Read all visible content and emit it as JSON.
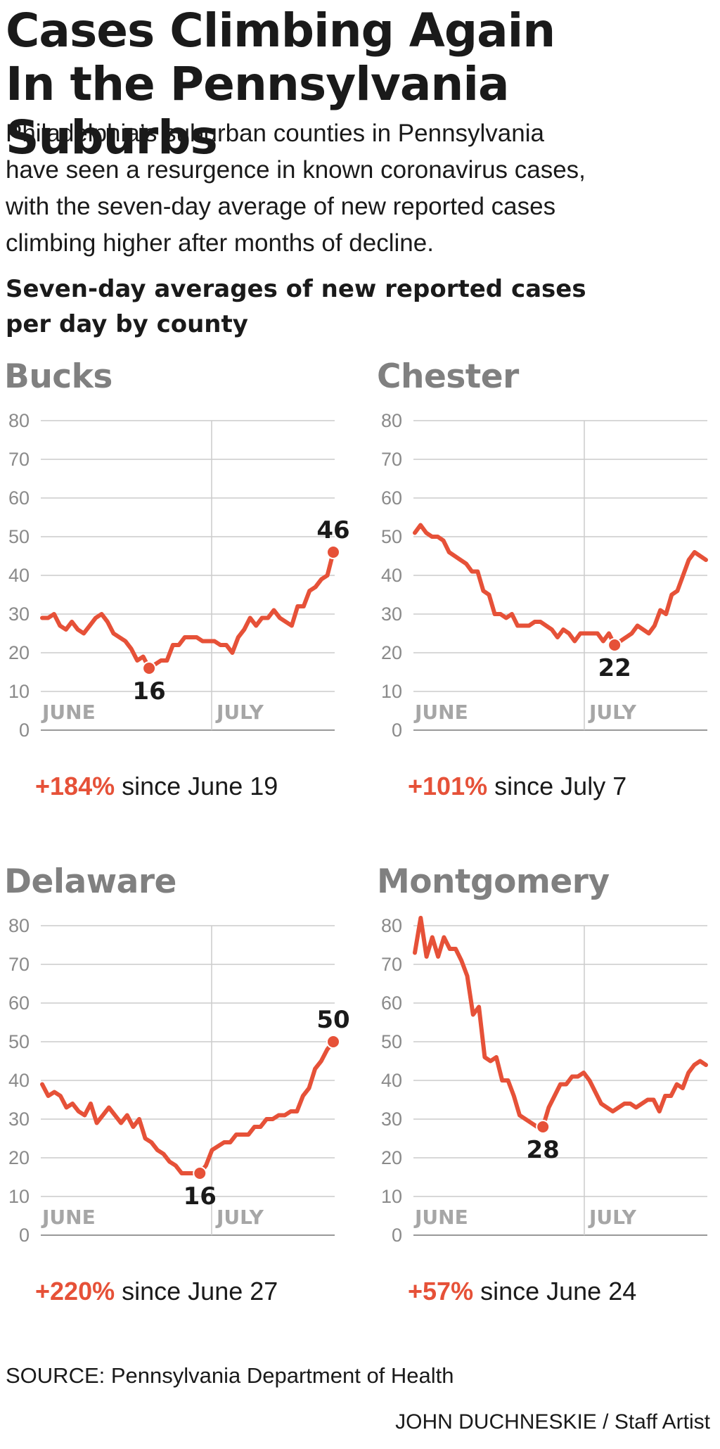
{
  "title": [
    "Cases Climbing Again",
    "In the Pennsylvania Suburbs"
  ],
  "subtitle": [
    "Philadelphia’s suburban counties in Pennsylvania",
    "have seen a resurgence in known coronavirus cases,",
    "with the seven-day average of new reported cases",
    "climbing higher after months of decline."
  ],
  "chart_heading": [
    "Seven-day averages of new reported cases",
    "per day by county"
  ],
  "source": "SOURCE: Pennsylvania Department of Health",
  "credit": "JOHN DUCHNESKIE / Staff Artist",
  "colors": {
    "line": "#e65138",
    "grid": "#cccccc",
    "panel_title": "#808080"
  },
  "chart_data": [
    {
      "type": "line",
      "title": "Bucks",
      "yticks": [
        "0",
        "10",
        "20",
        "30",
        "40",
        "50",
        "60",
        "70",
        "80"
      ],
      "ylim": [
        0,
        80
      ],
      "xlabels": [
        "JUNE",
        "JULY"
      ],
      "values": [
        29,
        29,
        30,
        27,
        26,
        28,
        26,
        25,
        27,
        29,
        30,
        28,
        25,
        24,
        23,
        21,
        18,
        19,
        16,
        17,
        18,
        18,
        22,
        22,
        24,
        24,
        24,
        23,
        23,
        23,
        22,
        22,
        20,
        24,
        26,
        29,
        27,
        29,
        29,
        31,
        29,
        28,
        27,
        32,
        32,
        36,
        37,
        39,
        40,
        46
      ],
      "callouts": [
        {
          "label": "16",
          "index": 18,
          "position": "below"
        },
        {
          "label": "46",
          "index": 49,
          "position": "above"
        }
      ],
      "change_pct": "+184%",
      "change_text": "since June 19"
    },
    {
      "type": "line",
      "title": "Chester",
      "yticks": [
        "0",
        "10",
        "20",
        "30",
        "40",
        "50",
        "60",
        "70",
        "80"
      ],
      "ylim": [
        0,
        80
      ],
      "xlabels": [
        "JUNE",
        "JULY"
      ],
      "values": [
        51,
        53,
        51,
        50,
        50,
        49,
        46,
        45,
        44,
        43,
        41,
        41,
        36,
        35,
        30,
        30,
        29,
        30,
        27,
        27,
        27,
        28,
        28,
        27,
        26,
        24,
        26,
        25,
        23,
        25,
        25,
        25,
        25,
        23,
        25,
        22,
        23,
        24,
        25,
        27,
        26,
        25,
        27,
        31,
        30,
        35,
        36,
        40,
        44,
        46,
        45,
        44
      ],
      "callouts": [
        {
          "label": "22",
          "index": 35,
          "position": "below"
        }
      ],
      "change_pct": "+101%",
      "change_text": "since July 7"
    },
    {
      "type": "line",
      "title": "Delaware",
      "yticks": [
        "0",
        "10",
        "20",
        "30",
        "40",
        "50",
        "60",
        "70",
        "80"
      ],
      "ylim": [
        0,
        80
      ],
      "xlabels": [
        "JUNE",
        "JULY"
      ],
      "values": [
        39,
        36,
        37,
        36,
        33,
        34,
        32,
        31,
        34,
        29,
        31,
        33,
        31,
        29,
        31,
        28,
        30,
        25,
        24,
        22,
        21,
        19,
        18,
        16,
        16,
        16,
        16,
        18,
        22,
        23,
        24,
        24,
        26,
        26,
        26,
        28,
        28,
        30,
        30,
        31,
        31,
        32,
        32,
        36,
        38,
        43,
        45,
        48,
        50
      ],
      "callouts": [
        {
          "label": "16",
          "index": 26,
          "position": "below"
        },
        {
          "label": "50",
          "index": 48,
          "position": "above"
        }
      ],
      "change_pct": "+220%",
      "change_text": "since June 27"
    },
    {
      "type": "line",
      "title": "Montgomery",
      "yticks": [
        "0",
        "10",
        "20",
        "30",
        "40",
        "50",
        "60",
        "70",
        "80"
      ],
      "ylim": [
        0,
        80
      ],
      "xlabels": [
        "JUNE",
        "JULY"
      ],
      "values": [
        73,
        82,
        72,
        77,
        72,
        77,
        74,
        74,
        71,
        67,
        57,
        59,
        46,
        45,
        46,
        40,
        40,
        36,
        31,
        30,
        29,
        28,
        28,
        33,
        36,
        39,
        39,
        41,
        41,
        42,
        40,
        37,
        34,
        33,
        32,
        33,
        34,
        34,
        33,
        34,
        35,
        35,
        32,
        36,
        36,
        39,
        38,
        42,
        44,
        45,
        44
      ],
      "callouts": [
        {
          "label": "28",
          "index": 22,
          "position": "below"
        }
      ],
      "change_pct": "+57%",
      "change_text": "since June 24"
    }
  ]
}
